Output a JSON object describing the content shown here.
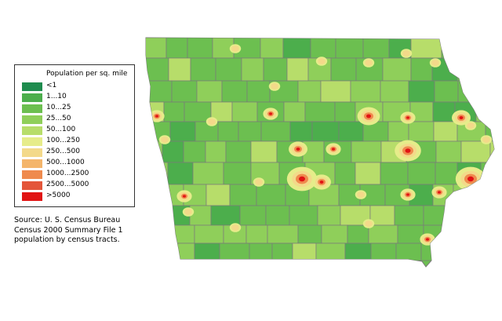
{
  "legend": {
    "title": "Population per sq. mile",
    "items": [
      {
        "label": "<1",
        "color": "#1e8c4e"
      },
      {
        "label": "1...10",
        "color": "#4cae4c"
      },
      {
        "label": "10...25",
        "color": "#6cbf50"
      },
      {
        "label": "25...50",
        "color": "#8fcf5a"
      },
      {
        "label": "50...100",
        "color": "#b7dd6a"
      },
      {
        "label": "100...250",
        "color": "#e6ec8a"
      },
      {
        "label": "250...500",
        "color": "#f3d98a"
      },
      {
        "label": "500...1000",
        "color": "#f4b56b"
      },
      {
        "label": "1000...2500",
        "color": "#ef8a4e"
      },
      {
        "label": "2500...5000",
        "color": "#e4563a"
      },
      {
        "label": ">5000",
        "color": "#e11414"
      }
    ]
  },
  "source": {
    "line1": "Source: U. S. Census Bureau",
    "line2": "Census 2000 Summary File 1",
    "line3": "population by census tracts."
  },
  "map": {
    "land_color": "#6cbf50",
    "border_color": "#7a7a7a"
  }
}
